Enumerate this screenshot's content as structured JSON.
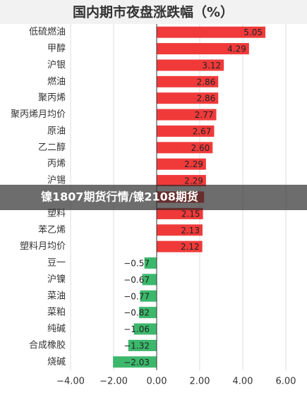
{
  "chart_data": {
    "type": "hbar",
    "title": "国内期市夜盘涨跌幅（%）",
    "categories": [
      "低硫燃油",
      "甲醇",
      "沪银",
      "燃油",
      "聚丙烯",
      "聚丙烯月均价",
      "原油",
      "乙二醇",
      "丙烯",
      "沪锡",
      null,
      "塑料",
      "苯乙烯",
      "塑料月均价",
      "豆一",
      "沪镍",
      "菜油",
      "菜粕",
      "纯碱",
      "合成橡胶",
      "烧碱"
    ],
    "values": [
      5.05,
      4.29,
      3.12,
      2.86,
      2.86,
      2.77,
      2.67,
      2.6,
      2.29,
      2.29,
      2.2,
      2.15,
      2.13,
      2.12,
      -0.57,
      -0.67,
      -0.77,
      -0.82,
      -1.06,
      -1.32,
      -2.03
    ],
    "value_labels": [
      "5.05",
      "4.29",
      "3.12",
      "2.86",
      "2.86",
      "2.77",
      "2.67",
      "2.60",
      "2.29",
      "2.29",
      null,
      "2.15",
      "2.13",
      "2.12",
      "−0.57",
      "−0.67",
      "−0.77",
      "−0.82",
      "−1.06",
      "−1.32",
      "−2.03"
    ],
    "positive_color": "#f03a3a",
    "negative_color": "#3cb86c",
    "xlim": [
      -4,
      6
    ],
    "xticks": [
      {
        "value": -4,
        "label": "−4.00"
      },
      {
        "value": -2,
        "label": "−2.00"
      },
      {
        "value": 0,
        "label": "0.00"
      },
      {
        "value": 2,
        "label": "2.00"
      },
      {
        "value": 4,
        "label": "4.00"
      },
      {
        "value": 6,
        "label": "6.00"
      }
    ],
    "grid": true
  },
  "banner": "镍1807期货行情/镍2108期货"
}
